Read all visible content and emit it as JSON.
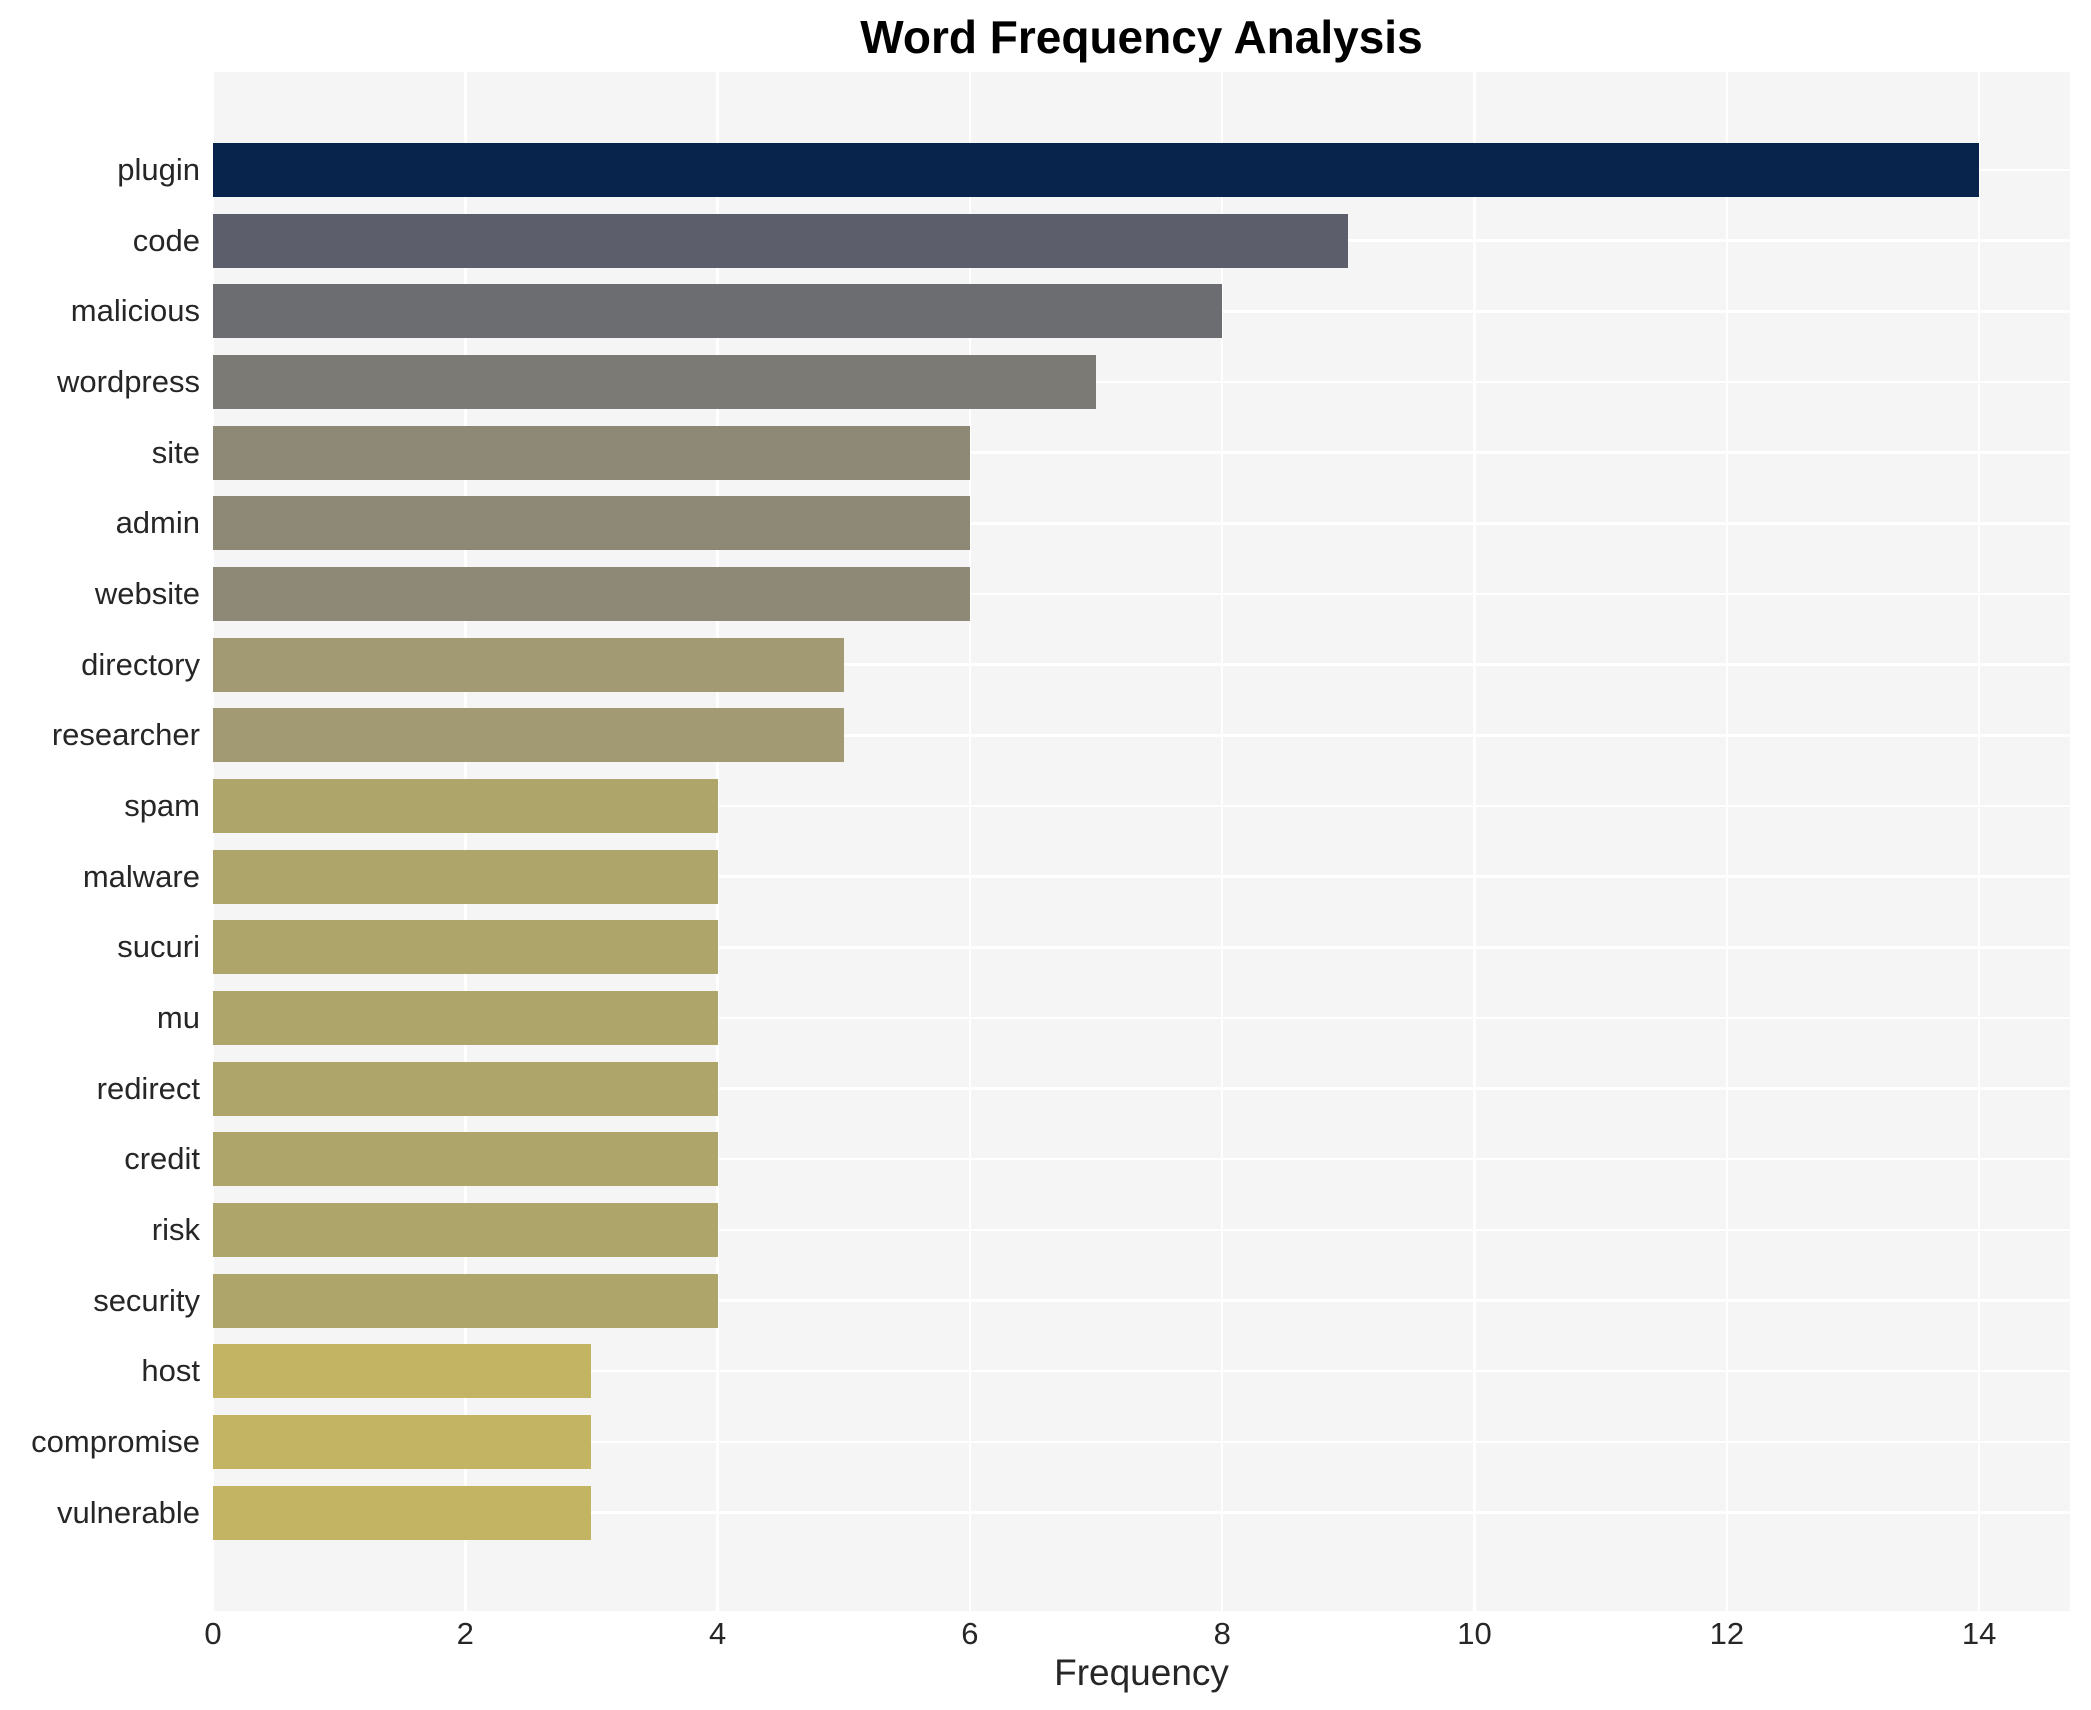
{
  "chart_data": {
    "type": "bar",
    "orientation": "horizontal",
    "title": "Word Frequency Analysis",
    "xlabel": "Frequency",
    "ylabel": "",
    "categories": [
      "plugin",
      "code",
      "malicious",
      "wordpress",
      "site",
      "admin",
      "website",
      "directory",
      "researcher",
      "spam",
      "malware",
      "sucuri",
      "mu",
      "redirect",
      "credit",
      "risk",
      "security",
      "host",
      "compromise",
      "vulnerable"
    ],
    "values": [
      14,
      9,
      8,
      7,
      6,
      6,
      6,
      5,
      5,
      4,
      4,
      4,
      4,
      4,
      4,
      4,
      4,
      3,
      3,
      3
    ],
    "bar_colors": [
      "#08244d",
      "#5c5f6b",
      "#6c6d71",
      "#7b7a75",
      "#8e8877",
      "#8e8877",
      "#8e8877",
      "#a19a73",
      "#a19a73",
      "#aea56a",
      "#aea56a",
      "#aea56a",
      "#aea56a",
      "#aea56a",
      "#aea56a",
      "#aea56a",
      "#aea56a",
      "#c3b463",
      "#c3b463",
      "#c3b463"
    ],
    "xlim": [
      0,
      14.72
    ],
    "xticks": [
      0,
      2,
      4,
      6,
      8,
      10,
      12,
      14
    ],
    "grid": true,
    "legend": "none",
    "plot_background": "#f5f5f6",
    "grid_color": "#ffffff",
    "tick_text_color": "#262626",
    "title_color": "#000000"
  }
}
